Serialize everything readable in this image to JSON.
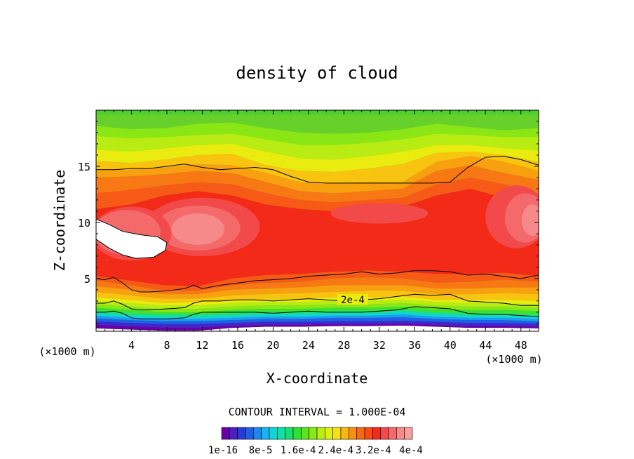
{
  "chart_data": {
    "type": "heatmap",
    "title": "density of cloud",
    "xlabel": "X-coordinate",
    "ylabel": "Z-coordinate",
    "x_unit": "(×1000 m)",
    "xlim": [
      0,
      50
    ],
    "ylim": [
      0.3,
      20
    ],
    "x_ticks": [
      4,
      8,
      12,
      16,
      20,
      24,
      28,
      32,
      36,
      40,
      44,
      48
    ],
    "y_ticks": [
      5,
      10,
      15
    ],
    "contour_interval_text": "CONTOUR INTERVAL = 1.000E-04",
    "contour_label": "2e-4",
    "colorbar": {
      "labels": [
        "1e-16",
        "8e-5",
        "1.6e-4",
        "2.4e-4",
        "3.2e-4",
        "4e-4"
      ],
      "colors": [
        "#6a00a8",
        "#4a1fc8",
        "#2a3ad8",
        "#1f5ee6",
        "#1f86f0",
        "#16b4f0",
        "#12d4d8",
        "#10e0a8",
        "#18e070",
        "#30e030",
        "#5ae61a",
        "#8aea10",
        "#b8ee10",
        "#e0f010",
        "#f8e010",
        "#f8b810",
        "#f89010",
        "#f86a10",
        "#f84a12",
        "#f42a18",
        "#f24a4a",
        "#f46a6a",
        "#f68a8a",
        "#f8a0a0"
      ]
    },
    "bands": [
      {
        "color": "#68d02a",
        "top": [
          19.6,
          19.6,
          19.6,
          19.6,
          19.6,
          19.6,
          19.6,
          19.6,
          19.6,
          19.6,
          19.6,
          19.6,
          19.6,
          19.6
        ],
        "bot": [
          18.6,
          18.3,
          18.4,
          18.8,
          18.9,
          18.4,
          18.0,
          17.9,
          18.0,
          18.3,
          18.8,
          18.5,
          18.2,
          18.4
        ]
      },
      {
        "color": "#8ae614",
        "top": [
          18.6,
          18.3,
          18.4,
          18.8,
          18.9,
          18.4,
          18.0,
          17.9,
          18.0,
          18.3,
          18.8,
          18.5,
          18.2,
          18.4
        ],
        "bot": [
          17.7,
          17.5,
          17.6,
          17.8,
          17.9,
          17.4,
          16.9,
          16.9,
          17.1,
          17.4,
          17.9,
          17.8,
          17.6,
          17.6
        ]
      },
      {
        "color": "#b8ec12",
        "top": [
          17.7,
          17.5,
          17.6,
          17.8,
          17.9,
          17.4,
          16.9,
          16.9,
          17.1,
          17.4,
          17.9,
          17.8,
          17.6,
          17.6
        ],
        "bot": [
          16.5,
          16.3,
          16.6,
          16.9,
          17.0,
          16.3,
          15.7,
          15.6,
          15.9,
          16.3,
          16.9,
          16.9,
          16.6,
          16.4
        ]
      },
      {
        "color": "#eaec10",
        "top": [
          16.5,
          16.3,
          16.6,
          16.9,
          17.0,
          16.3,
          15.7,
          15.6,
          15.9,
          16.3,
          16.9,
          16.9,
          16.6,
          16.4
        ],
        "bot": [
          15.5,
          15.3,
          15.6,
          16.0,
          16.1,
          15.1,
          14.6,
          14.5,
          14.8,
          15.2,
          16.2,
          16.3,
          16.0,
          15.4
        ]
      },
      {
        "color": "#f8c410",
        "top": [
          15.5,
          15.3,
          15.6,
          16.0,
          16.1,
          15.1,
          14.6,
          14.5,
          14.8,
          15.2,
          16.2,
          16.3,
          16.0,
          15.4
        ],
        "bot": [
          14.6,
          14.7,
          14.9,
          15.2,
          15.1,
          14.4,
          13.6,
          13.5,
          13.6,
          13.6,
          15.4,
          15.9,
          15.4,
          14.6
        ]
      },
      {
        "color": "#f8a010",
        "top": [
          14.6,
          14.7,
          14.9,
          15.2,
          15.1,
          14.4,
          13.6,
          13.5,
          13.6,
          13.6,
          15.4,
          15.9,
          15.4,
          14.6
        ],
        "bot": [
          14.0,
          14.1,
          14.3,
          14.6,
          14.4,
          13.6,
          12.8,
          12.6,
          12.8,
          13.0,
          14.6,
          15.1,
          14.4,
          13.8
        ]
      },
      {
        "color": "#f87814",
        "top": [
          14.0,
          14.1,
          14.3,
          14.6,
          14.4,
          13.6,
          12.8,
          12.6,
          12.8,
          13.0,
          14.6,
          15.1,
          14.4,
          13.8
        ],
        "bot": [
          12.6,
          12.9,
          13.3,
          13.6,
          13.4,
          12.6,
          12.0,
          11.8,
          12.0,
          12.2,
          13.4,
          14.0,
          13.4,
          12.4
        ]
      },
      {
        "color": "#f65a16",
        "top": [
          12.6,
          12.9,
          13.3,
          13.6,
          13.4,
          12.6,
          12.0,
          11.8,
          12.0,
          12.2,
          13.4,
          14.0,
          13.4,
          12.4
        ],
        "bot": [
          11.2,
          11.6,
          12.4,
          12.8,
          12.4,
          11.6,
          11.2,
          11.0,
          11.2,
          11.4,
          12.4,
          13.0,
          12.2,
          11.0
        ]
      },
      {
        "color": "#f42a18",
        "top": [
          11.2,
          11.6,
          12.4,
          12.8,
          12.4,
          11.6,
          11.2,
          11.0,
          11.2,
          11.4,
          12.4,
          13.0,
          12.2,
          11.0
        ],
        "bot": [
          5.2,
          4.8,
          4.4,
          4.3,
          5.0,
          5.3,
          5.4,
          5.6,
          5.7,
          5.6,
          5.4,
          5.4,
          5.5,
          5.2
        ]
      },
      {
        "color": "#f65a16",
        "top": [
          5.2,
          4.8,
          4.4,
          4.3,
          5.0,
          5.3,
          5.4,
          5.6,
          5.7,
          5.6,
          5.4,
          5.4,
          5.5,
          5.2
        ],
        "bot": [
          4.8,
          4.4,
          3.9,
          3.9,
          4.4,
          4.6,
          4.7,
          5.0,
          5.1,
          5.0,
          4.6,
          4.7,
          4.9,
          4.7
        ]
      },
      {
        "color": "#f87814",
        "top": [
          4.8,
          4.4,
          3.9,
          3.9,
          4.4,
          4.6,
          4.7,
          5.0,
          5.1,
          5.0,
          4.6,
          4.7,
          4.9,
          4.7
        ],
        "bot": [
          4.3,
          4.0,
          3.6,
          3.6,
          4.0,
          4.1,
          4.2,
          4.4,
          4.4,
          4.4,
          4.1,
          4.1,
          4.2,
          4.2
        ]
      },
      {
        "color": "#f8a010",
        "top": [
          4.3,
          4.0,
          3.6,
          3.6,
          4.0,
          4.1,
          4.2,
          4.4,
          4.4,
          4.4,
          4.1,
          4.1,
          4.2,
          4.2
        ],
        "bot": [
          3.8,
          3.5,
          3.2,
          3.2,
          3.5,
          3.6,
          3.7,
          3.8,
          3.9,
          3.9,
          3.6,
          3.6,
          3.7,
          3.6
        ]
      },
      {
        "color": "#f8c410",
        "top": [
          3.8,
          3.5,
          3.2,
          3.2,
          3.5,
          3.6,
          3.7,
          3.8,
          3.9,
          3.9,
          3.6,
          3.6,
          3.7,
          3.6
        ],
        "bot": [
          3.3,
          3.1,
          2.8,
          2.9,
          3.1,
          3.1,
          3.2,
          3.3,
          3.3,
          3.4,
          3.1,
          3.1,
          3.1,
          3.0
        ]
      },
      {
        "color": "#eaec10",
        "top": [
          3.3,
          3.1,
          2.8,
          2.9,
          3.1,
          3.1,
          3.2,
          3.3,
          3.3,
          3.4,
          3.1,
          3.1,
          3.1,
          3.0
        ],
        "bot": [
          3.0,
          2.8,
          2.6,
          2.6,
          2.8,
          2.9,
          2.9,
          3.0,
          3.0,
          3.1,
          2.9,
          2.8,
          2.8,
          2.7
        ]
      },
      {
        "color": "#b8ec12",
        "top": [
          3.0,
          2.8,
          2.6,
          2.6,
          2.8,
          2.9,
          2.9,
          3.0,
          3.0,
          3.1,
          2.9,
          2.8,
          2.8,
          2.7
        ],
        "bot": [
          2.7,
          2.5,
          2.3,
          2.3,
          2.5,
          2.6,
          2.6,
          2.7,
          2.7,
          2.8,
          2.6,
          2.5,
          2.5,
          2.4
        ]
      },
      {
        "color": "#8ae614",
        "top": [
          2.7,
          2.5,
          2.3,
          2.3,
          2.5,
          2.6,
          2.6,
          2.7,
          2.7,
          2.8,
          2.6,
          2.5,
          2.5,
          2.4
        ],
        "bot": [
          2.4,
          2.2,
          2.0,
          2.0,
          2.2,
          2.3,
          2.3,
          2.4,
          2.4,
          2.5,
          2.3,
          2.2,
          2.2,
          2.1
        ]
      },
      {
        "color": "#40e030",
        "top": [
          2.4,
          2.2,
          2.0,
          2.0,
          2.2,
          2.3,
          2.3,
          2.4,
          2.4,
          2.5,
          2.3,
          2.2,
          2.2,
          2.1
        ],
        "bot": [
          2.1,
          1.9,
          1.8,
          1.8,
          1.9,
          2.0,
          2.0,
          2.1,
          2.1,
          2.2,
          2.0,
          1.9,
          1.9,
          1.8
        ]
      },
      {
        "color": "#18e088",
        "top": [
          2.1,
          1.9,
          1.8,
          1.8,
          1.9,
          2.0,
          2.0,
          2.1,
          2.1,
          2.2,
          2.0,
          1.9,
          1.9,
          1.8
        ],
        "bot": [
          1.9,
          1.7,
          1.6,
          1.6,
          1.7,
          1.8,
          1.8,
          1.9,
          1.9,
          2.0,
          1.8,
          1.7,
          1.7,
          1.6
        ]
      },
      {
        "color": "#12d4d8",
        "top": [
          1.9,
          1.7,
          1.6,
          1.6,
          1.7,
          1.8,
          1.8,
          1.9,
          1.9,
          2.0,
          1.8,
          1.7,
          1.7,
          1.6
        ],
        "bot": [
          1.7,
          1.5,
          1.4,
          1.4,
          1.5,
          1.6,
          1.6,
          1.7,
          1.7,
          1.8,
          1.6,
          1.5,
          1.5,
          1.4
        ]
      },
      {
        "color": "#16a0f0",
        "top": [
          1.7,
          1.5,
          1.4,
          1.4,
          1.5,
          1.6,
          1.6,
          1.7,
          1.7,
          1.8,
          1.6,
          1.5,
          1.5,
          1.4
        ],
        "bot": [
          1.45,
          1.3,
          1.2,
          1.2,
          1.3,
          1.4,
          1.4,
          1.5,
          1.5,
          1.55,
          1.4,
          1.3,
          1.3,
          1.2
        ]
      },
      {
        "color": "#1f5ee6",
        "top": [
          1.45,
          1.3,
          1.2,
          1.2,
          1.3,
          1.4,
          1.4,
          1.5,
          1.5,
          1.55,
          1.4,
          1.3,
          1.3,
          1.2
        ],
        "bot": [
          1.2,
          1.05,
          0.95,
          0.95,
          1.05,
          1.15,
          1.15,
          1.2,
          1.2,
          1.25,
          1.15,
          1.05,
          1.05,
          1.0
        ]
      },
      {
        "color": "#3a28d0",
        "top": [
          1.2,
          1.05,
          0.95,
          0.95,
          1.05,
          1.15,
          1.15,
          1.2,
          1.2,
          1.25,
          1.15,
          1.05,
          1.05,
          1.0
        ],
        "bot": [
          0.9,
          0.75,
          0.65,
          0.65,
          0.8,
          0.9,
          0.9,
          0.95,
          0.95,
          1.0,
          0.9,
          0.8,
          0.8,
          0.75
        ]
      },
      {
        "color": "#6a00a8",
        "top": [
          0.9,
          0.75,
          0.65,
          0.65,
          0.8,
          0.9,
          0.9,
          0.95,
          0.95,
          1.0,
          0.9,
          0.8,
          0.8,
          0.75
        ],
        "bot": [
          0.55,
          0.45,
          0.35,
          0.35,
          0.6,
          0.7,
          0.7,
          0.75,
          0.75,
          0.8,
          0.7,
          0.6,
          0.6,
          0.55
        ]
      }
    ],
    "blobs": [
      {
        "color": "#f24a4a",
        "cx": 12,
        "cy": 9.6,
        "rx": 6.5,
        "ry": 2.6
      },
      {
        "color": "#f46a6a",
        "cx": 11.5,
        "cy": 9.5,
        "rx": 4.8,
        "ry": 2.0
      },
      {
        "color": "#f68a8a",
        "cx": 11.5,
        "cy": 9.4,
        "rx": 3.0,
        "ry": 1.4
      },
      {
        "color": "#f24a4a",
        "cx": 4,
        "cy": 9.0,
        "rx": 4.5,
        "ry": 2.4
      },
      {
        "color": "#f46a6a",
        "cx": 3.5,
        "cy": 9.1,
        "rx": 3.8,
        "ry": 2.0
      },
      {
        "color": "#f24a4a",
        "cx": 47.5,
        "cy": 10.5,
        "rx": 3.5,
        "ry": 2.8
      },
      {
        "color": "#f46a6a",
        "cx": 48.5,
        "cy": 10.4,
        "rx": 2.3,
        "ry": 2.2
      },
      {
        "color": "#f68a8a",
        "cx": 49.3,
        "cy": 10.2,
        "rx": 1.2,
        "ry": 1.4
      },
      {
        "color": "#f24a4a",
        "cx": 32,
        "cy": 10.8,
        "rx": 5.5,
        "ry": 0.9
      }
    ],
    "white_region": [
      [
        0,
        10.3
      ],
      [
        1.5,
        9.8
      ],
      [
        3,
        9.2
      ],
      [
        5,
        8.9
      ],
      [
        7,
        8.7
      ],
      [
        8,
        8.2
      ],
      [
        7.8,
        7.5
      ],
      [
        6.5,
        6.9
      ],
      [
        4.5,
        6.8
      ],
      [
        3,
        7.1
      ],
      [
        1.5,
        7.7
      ],
      [
        0,
        8.5
      ]
    ],
    "contour_lines": [
      {
        "x": [
          0,
          2,
          4,
          6,
          8,
          10,
          12,
          14,
          16,
          18,
          20,
          22,
          24,
          26,
          28,
          30,
          32,
          34,
          36,
          38,
          40,
          42,
          44,
          46,
          48,
          50
        ],
        "y": [
          14.7,
          14.7,
          14.8,
          14.8,
          15.0,
          15.2,
          14.9,
          14.7,
          14.8,
          14.9,
          14.7,
          14.1,
          13.6,
          13.5,
          13.5,
          13.5,
          13.5,
          13.5,
          13.5,
          13.5,
          13.6,
          14.9,
          15.8,
          15.9,
          15.6,
          15.1
        ]
      },
      {
        "x": [
          0,
          1,
          2,
          3,
          4,
          5,
          6,
          8,
          10,
          11,
          12,
          14,
          16,
          18,
          20,
          22,
          24,
          26,
          28,
          30,
          32,
          34,
          36,
          38,
          40,
          42,
          44,
          46,
          48,
          50
        ],
        "y": [
          5.0,
          4.9,
          5.1,
          4.6,
          4.0,
          3.8,
          3.8,
          3.9,
          4.1,
          4.4,
          4.1,
          4.4,
          4.6,
          4.8,
          4.9,
          5.0,
          5.2,
          5.3,
          5.4,
          5.6,
          5.4,
          5.5,
          5.7,
          5.7,
          5.6,
          5.3,
          5.4,
          5.2,
          5.0,
          5.3
        ]
      },
      {
        "x": [
          0,
          1,
          2,
          3,
          4,
          5,
          6,
          8,
          10,
          11,
          12,
          14,
          16,
          18,
          20,
          22,
          24,
          26,
          28,
          30,
          32,
          34,
          36,
          38,
          40,
          42,
          44,
          46,
          48,
          50
        ],
        "y": [
          2.8,
          2.8,
          3.0,
          2.7,
          2.3,
          2.2,
          2.2,
          2.3,
          2.4,
          2.8,
          3.0,
          3.0,
          3.1,
          3.1,
          3.0,
          3.1,
          3.2,
          3.1,
          3.0,
          3.1,
          3.2,
          3.4,
          3.6,
          3.5,
          3.6,
          3.0,
          2.9,
          2.8,
          2.6,
          2.6
        ]
      },
      {
        "x": [
          0,
          1,
          2,
          3,
          4,
          5,
          6,
          8,
          10,
          11,
          12,
          14,
          16,
          18,
          20,
          22,
          24,
          26,
          28,
          30,
          32,
          34,
          36,
          38,
          40,
          42,
          44,
          46,
          48,
          50
        ],
        "y": [
          2.0,
          2.0,
          2.1,
          1.9,
          1.5,
          1.4,
          1.4,
          1.4,
          1.5,
          1.8,
          2.0,
          2.0,
          2.0,
          2.0,
          1.9,
          2.0,
          2.1,
          2.0,
          2.0,
          2.0,
          2.1,
          2.2,
          2.5,
          2.4,
          2.3,
          1.9,
          1.8,
          1.8,
          1.7,
          1.6
        ]
      }
    ]
  }
}
